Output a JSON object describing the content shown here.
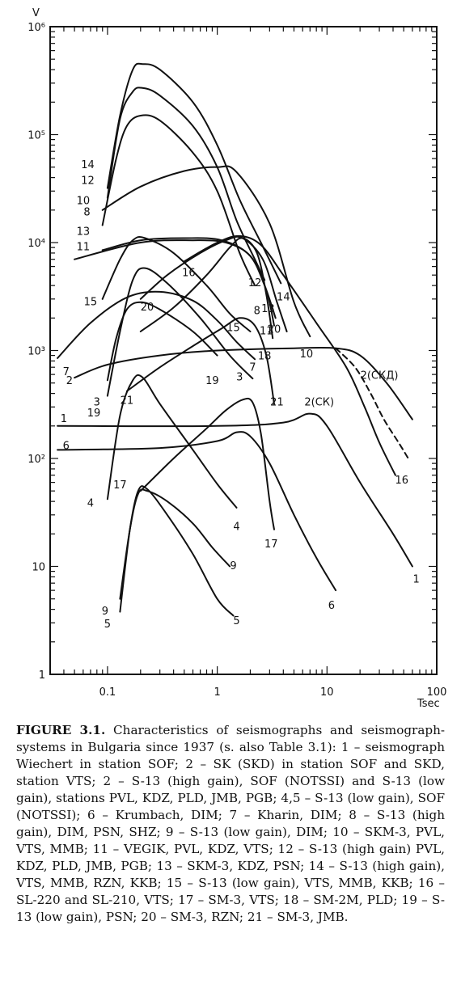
{
  "chart_data": {
    "type": "line",
    "xlabel": "Tsec",
    "ylabel": "V",
    "x_scale": "log",
    "y_scale": "log",
    "xlim": [
      0.03,
      100
    ],
    "ylim": [
      1,
      1000000
    ],
    "x_ticks": [
      0.1,
      1,
      10,
      100
    ],
    "x_tick_labels": [
      "0.1",
      "1",
      "10",
      "100"
    ],
    "y_ticks": [
      1,
      10,
      100,
      1000,
      10000,
      100000,
      1000000
    ],
    "y_tick_labels": [
      "1",
      "10",
      "10²",
      "10³",
      "10⁴",
      "10⁵",
      "10⁶"
    ],
    "grid": false,
    "series": [
      {
        "name": "1",
        "dashed": false,
        "points": [
          [
            0.035,
            200
          ],
          [
            1,
            200
          ],
          [
            4,
            215
          ],
          [
            7,
            260
          ],
          [
            10,
            200
          ],
          [
            20,
            60
          ],
          [
            40,
            20
          ],
          [
            60,
            10
          ]
        ],
        "labels": [
          {
            "text": "1",
            "x": 0.04,
            "y": 230
          },
          {
            "text": "1",
            "x": 65,
            "y": 7.5
          }
        ]
      },
      {
        "name": "2",
        "dashed": false,
        "points": [
          [
            0.05,
            560
          ],
          [
            0.1,
            740
          ],
          [
            0.3,
            900
          ],
          [
            1,
            1000
          ],
          [
            5,
            1050
          ],
          [
            12,
            1050
          ],
          [
            20,
            900
          ],
          [
            35,
            500
          ],
          [
            60,
            230
          ]
        ],
        "labels": [
          {
            "text": "2",
            "x": 0.045,
            "y": 520
          },
          {
            "text": "2(СКД)",
            "x": 30,
            "y": 580
          }
        ]
      },
      {
        "name": "2(CK)",
        "dashed": true,
        "points": [
          [
            12,
            1050
          ],
          [
            18,
            700
          ],
          [
            25,
            400
          ],
          [
            33,
            230
          ],
          [
            45,
            140
          ],
          [
            55,
            100
          ]
        ],
        "labels": [
          {
            "text": "2(СК)",
            "x": 8.5,
            "y": 330
          }
        ]
      },
      {
        "name": "3",
        "dashed": false,
        "points": [
          [
            0.1,
            380
          ],
          [
            0.13,
            1500
          ],
          [
            0.17,
            4500
          ],
          [
            0.22,
            5800
          ],
          [
            0.35,
            4200
          ],
          [
            0.7,
            2000
          ],
          [
            1.3,
            900
          ],
          [
            2.1,
            550
          ]
        ],
        "labels": [
          {
            "text": "3",
            "x": 0.08,
            "y": 330
          },
          {
            "text": "3",
            "x": 1.6,
            "y": 560
          }
        ]
      },
      {
        "name": "4",
        "dashed": false,
        "points": [
          [
            0.1,
            42
          ],
          [
            0.13,
            250
          ],
          [
            0.17,
            530
          ],
          [
            0.21,
            560
          ],
          [
            0.3,
            320
          ],
          [
            0.6,
            120
          ],
          [
            1,
            58
          ],
          [
            1.5,
            35
          ]
        ],
        "labels": [
          {
            "text": "4",
            "x": 0.07,
            "y": 38
          },
          {
            "text": "4",
            "x": 1.5,
            "y": 23
          }
        ]
      },
      {
        "name": "5",
        "dashed": false,
        "points": [
          [
            0.13,
            3.8
          ],
          [
            0.16,
            22
          ],
          [
            0.19,
            50
          ],
          [
            0.23,
            52
          ],
          [
            0.35,
            30
          ],
          [
            0.6,
            13
          ],
          [
            1,
            5
          ],
          [
            1.4,
            3.5
          ]
        ],
        "labels": [
          {
            "text": "5",
            "x": 0.1,
            "y": 2.9
          },
          {
            "text": "5",
            "x": 1.5,
            "y": 3.1
          }
        ]
      },
      {
        "name": "6",
        "dashed": false,
        "points": [
          [
            0.035,
            120
          ],
          [
            0.3,
            125
          ],
          [
            1,
            145
          ],
          [
            1.5,
            175
          ],
          [
            2,
            160
          ],
          [
            3,
            90
          ],
          [
            5,
            30
          ],
          [
            8,
            12
          ],
          [
            12,
            6
          ]
        ],
        "labels": [
          {
            "text": "6",
            "x": 0.042,
            "y": 130
          },
          {
            "text": "6",
            "x": 11,
            "y": 4.3
          }
        ]
      },
      {
        "name": "7",
        "dashed": false,
        "points": [
          [
            0.035,
            850
          ],
          [
            0.07,
            1800
          ],
          [
            0.15,
            3100
          ],
          [
            0.3,
            3500
          ],
          [
            0.6,
            2900
          ],
          [
            1,
            1900
          ],
          [
            1.5,
            1200
          ],
          [
            2.2,
            830
          ]
        ],
        "labels": [
          {
            "text": "7",
            "x": 0.042,
            "y": 630
          },
          {
            "text": "7",
            "x": 2.1,
            "y": 690
          }
        ]
      },
      {
        "name": "8",
        "dashed": false,
        "points": [
          [
            0.09,
            14500
          ],
          [
            0.12,
            60000
          ],
          [
            0.15,
            120000
          ],
          [
            0.2,
            150000
          ],
          [
            0.3,
            135000
          ],
          [
            0.6,
            68000
          ],
          [
            1,
            30000
          ],
          [
            1.6,
            8000
          ],
          [
            2.2,
            4000
          ]
        ],
        "labels": [
          {
            "text": "8",
            "x": 0.065,
            "y": 19000
          },
          {
            "text": "8",
            "x": 2.3,
            "y": 2300
          }
        ]
      },
      {
        "name": "9",
        "dashed": false,
        "points": [
          [
            0.13,
            5
          ],
          [
            0.16,
            22
          ],
          [
            0.19,
            47
          ],
          [
            0.23,
            50
          ],
          [
            0.35,
            40
          ],
          [
            0.6,
            25
          ],
          [
            0.9,
            15
          ],
          [
            1.3,
            10
          ]
        ],
        "labels": [
          {
            "text": "9",
            "x": 0.095,
            "y": 3.8
          },
          {
            "text": "9",
            "x": 1.4,
            "y": 10
          }
        ]
      },
      {
        "name": "10",
        "dashed": false,
        "points": [
          [
            0.09,
            20000
          ],
          [
            0.2,
            33000
          ],
          [
            0.5,
            46000
          ],
          [
            1,
            50000
          ],
          [
            1.5,
            45000
          ],
          [
            3,
            15000
          ],
          [
            5,
            2800
          ],
          [
            7,
            1350
          ]
        ],
        "labels": [
          {
            "text": "10",
            "x": 0.06,
            "y": 24000
          },
          {
            "text": "10",
            "x": 6.5,
            "y": 920
          }
        ]
      },
      {
        "name": "11",
        "dashed": false,
        "points": [
          [
            0.09,
            8500
          ],
          [
            0.2,
            10500
          ],
          [
            0.5,
            11000
          ],
          [
            1.1,
            10500
          ],
          [
            2,
            7500
          ],
          [
            2.8,
            3600
          ],
          [
            3.3,
            1700
          ]
        ],
        "labels": [
          {
            "text": "11",
            "x": 0.06,
            "y": 9000
          },
          {
            "text": "11",
            "x": 2.8,
            "y": 1500
          }
        ]
      },
      {
        "name": "12",
        "dashed": false,
        "points": [
          [
            0.1,
            26000
          ],
          [
            0.13,
            140000
          ],
          [
            0.17,
            250000
          ],
          [
            0.21,
            270000
          ],
          [
            0.3,
            230000
          ],
          [
            0.6,
            120000
          ],
          [
            1,
            50000
          ],
          [
            1.5,
            16000
          ],
          [
            2.2,
            7000
          ],
          [
            2.7,
            4500
          ]
        ],
        "labels": [
          {
            "text": "12",
            "x": 0.066,
            "y": 37000
          },
          {
            "text": "12",
            "x": 2.2,
            "y": 4200
          }
        ]
      },
      {
        "name": "13",
        "dashed": false,
        "points": [
          [
            0.05,
            7000
          ],
          [
            0.2,
            10000
          ],
          [
            0.6,
            10500
          ],
          [
            1.2,
            10000
          ],
          [
            2,
            7500
          ],
          [
            2.7,
            4000
          ],
          [
            3.4,
            2000
          ]
        ],
        "labels": [
          {
            "text": "13",
            "x": 0.06,
            "y": 12500
          },
          {
            "text": "13",
            "x": 2.9,
            "y": 2400
          }
        ]
      },
      {
        "name": "14",
        "dashed": false,
        "points": [
          [
            0.1,
            32000
          ],
          [
            0.13,
            150000
          ],
          [
            0.17,
            400000
          ],
          [
            0.21,
            450000
          ],
          [
            0.3,
            400000
          ],
          [
            0.6,
            200000
          ],
          [
            1,
            80000
          ],
          [
            1.6,
            25000
          ],
          [
            2.5,
            10000
          ],
          [
            3.8,
            4200
          ]
        ],
        "labels": [
          {
            "text": "14",
            "x": 0.066,
            "y": 52000
          },
          {
            "text": "14",
            "x": 4,
            "y": 3100
          }
        ]
      },
      {
        "name": "15",
        "dashed": false,
        "points": [
          [
            0.09,
            3000
          ],
          [
            0.13,
            7000
          ],
          [
            0.17,
            10500
          ],
          [
            0.22,
            11000
          ],
          [
            0.4,
            8000
          ],
          [
            0.8,
            4000
          ],
          [
            1.3,
            2200
          ],
          [
            2,
            1500
          ]
        ],
        "labels": [
          {
            "text": "15",
            "x": 0.07,
            "y": 2800
          },
          {
            "text": "15",
            "x": 1.4,
            "y": 1600
          }
        ]
      },
      {
        "name": "16",
        "dashed": false,
        "points": [
          [
            0.5,
            6700
          ],
          [
            1,
            10000
          ],
          [
            1.6,
            11500
          ],
          [
            2.5,
            9500
          ],
          [
            4,
            5000
          ],
          [
            8,
            1800
          ],
          [
            15,
            700
          ],
          [
            22,
            300
          ],
          [
            30,
            140
          ],
          [
            42,
            70
          ]
        ],
        "labels": [
          {
            "text": "16",
            "x": 0.55,
            "y": 5200
          },
          {
            "text": "16",
            "x": 48,
            "y": 62
          }
        ]
      },
      {
        "name": "17",
        "dashed": false,
        "points": [
          [
            0.2,
            50
          ],
          [
            0.4,
            100
          ],
          [
            0.8,
            190
          ],
          [
            1.2,
            280
          ],
          [
            1.7,
            350
          ],
          [
            2.1,
            330
          ],
          [
            2.5,
            170
          ],
          [
            3,
            40
          ],
          [
            3.3,
            22
          ]
        ],
        "labels": [
          {
            "text": "17",
            "x": 0.13,
            "y": 56
          },
          {
            "text": "17",
            "x": 3.1,
            "y": 16
          }
        ]
      },
      {
        "name": "18",
        "dashed": false,
        "points": [
          [
            0.2,
            1500
          ],
          [
            0.4,
            2500
          ],
          [
            0.8,
            5000
          ],
          [
            1.3,
            9000
          ],
          [
            1.7,
            11000
          ],
          [
            2.3,
            8000
          ],
          [
            2.8,
            3300
          ],
          [
            3.2,
            1300
          ]
        ],
        "labels": [
          {
            "text": "18",
            "x": 2.7,
            "y": 880
          }
        ]
      },
      {
        "name": "19",
        "dashed": false,
        "points": [
          [
            0.1,
            530
          ],
          [
            0.12,
            1300
          ],
          [
            0.15,
            2400
          ],
          [
            0.2,
            2800
          ],
          [
            0.3,
            2400
          ],
          [
            0.6,
            1500
          ],
          [
            1,
            900
          ]
        ],
        "labels": [
          {
            "text": "19",
            "x": 0.075,
            "y": 260
          },
          {
            "text": "19",
            "x": 0.9,
            "y": 520
          }
        ]
      },
      {
        "name": "20",
        "dashed": false,
        "points": [
          [
            0.2,
            3000
          ],
          [
            0.35,
            5000
          ],
          [
            0.7,
            8000
          ],
          [
            1.2,
            10500
          ],
          [
            1.7,
            11000
          ],
          [
            2.6,
            7000
          ],
          [
            3.5,
            2800
          ],
          [
            4.3,
            1500
          ]
        ],
        "labels": [
          {
            "text": "20",
            "x": 0.23,
            "y": 2500
          },
          {
            "text": "20",
            "x": 3.3,
            "y": 1550
          }
        ]
      },
      {
        "name": "21",
        "dashed": false,
        "points": [
          [
            0.15,
            420
          ],
          [
            0.3,
            700
          ],
          [
            0.6,
            1100
          ],
          [
            1.1,
            1600
          ],
          [
            1.6,
            2000
          ],
          [
            2.2,
            1700
          ],
          [
            2.8,
            900
          ],
          [
            3.3,
            320
          ]
        ],
        "labels": [
          {
            "text": "21",
            "x": 0.15,
            "y": 340
          },
          {
            "text": "21",
            "x": 3.5,
            "y": 330
          }
        ]
      }
    ]
  },
  "caption": {
    "lead": "FIGURE 3.1.",
    "text": " Characteristics of seismographs and seismograph-systems in Bulgaria since 1937 (s. also Table 3.1): 1 – seismograph Wiechert in station SOF; 2 – SK (SKD) in station SOF and SKD, station VTS; 2 – S-13 (high gain), SOF (NOTSSI) and S-13 (low gain), stations PVL, KDZ, PLD, JMB, PGB; 4,5 – S-13 (low gain), SOF (NOTSSI); 6 – Krumbach, DIM; 7 – Kharin, DIM; 8 – S-13 (high gain), DIM, PSN, SHZ; 9 – S-13 (low gain), DIM; 10 – SKM-3, PVL, VTS, MMB; 11 – VEGIK, PVL, KDZ, VTS; 12 – S-13 (high gain) PVL, KDZ, PLD, JMB, PGB; 13 – SKM-3, KDZ, PSN; 14 – S-13 (high gain), VTS, MMB, RZN, KKB; 15 – S-13 (low gain), VTS, MMB, KKB; 16 – SL-220 and SL-210, VTS; 17 – SM-3, VTS; 18 – SM-2M, PLD; 19 – S-13 (low gain), PSN; 20 – SM-3, RZN; 21 – SM-3, JMB."
  }
}
